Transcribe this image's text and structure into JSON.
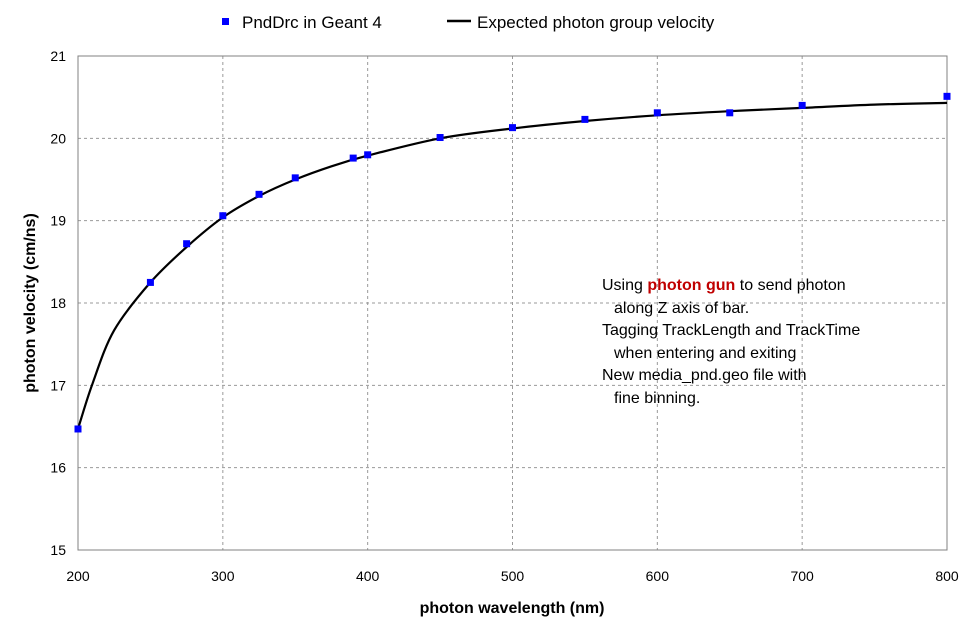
{
  "chart_data": {
    "type": "scatter",
    "xlabel": "photon wavelength (nm)",
    "ylabel": "photon velocity (cm/ns)",
    "xlim": [
      200,
      800
    ],
    "ylim": [
      15,
      21
    ],
    "x_ticks": [
      "200",
      "300",
      "400",
      "500",
      "600",
      "700",
      "800"
    ],
    "y_ticks": [
      "15",
      "16",
      "17",
      "18",
      "19",
      "20",
      "21"
    ],
    "grid": true,
    "legend_position": "top",
    "series": [
      {
        "name": "PndDrc in Geant 4",
        "kind": "markers",
        "color": "#0000ff",
        "x": [
          200,
          250,
          275,
          300,
          325,
          350,
          390,
          400,
          450,
          500,
          550,
          600,
          650,
          700,
          800
        ],
        "y": [
          16.47,
          18.25,
          18.72,
          19.06,
          19.32,
          19.52,
          19.76,
          19.8,
          20.01,
          20.13,
          20.23,
          20.31,
          20.31,
          20.4,
          20.51
        ]
      },
      {
        "name": "Expected photon group velocity",
        "kind": "line",
        "color": "#000000",
        "x": [
          200,
          210,
          225,
          250,
          275,
          300,
          325,
          350,
          375,
          400,
          450,
          500,
          550,
          600,
          650,
          700,
          750,
          800
        ],
        "y": [
          16.47,
          17.02,
          17.67,
          18.25,
          18.68,
          19.04,
          19.3,
          19.5,
          19.66,
          19.79,
          20.0,
          20.12,
          20.21,
          20.28,
          20.33,
          20.37,
          20.41,
          20.43
        ]
      }
    ]
  },
  "annotation": {
    "line1_pre": "Using ",
    "line1_highlight": "photon gun",
    "line1_post": " to send photon",
    "line2": "along Z axis of bar.",
    "line3": "Tagging TrackLength and TrackTime",
    "line4": "when entering and exiting",
    "line5": "New media_pnd.geo file with",
    "line6": "fine binning."
  }
}
